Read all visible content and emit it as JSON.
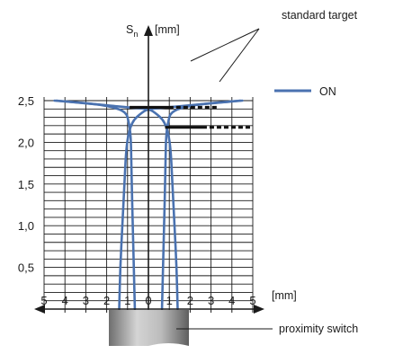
{
  "chart_data": {
    "type": "line",
    "title": "",
    "ylabel": "S",
    "ylabel_sub": "n",
    "yunit": "[mm]",
    "xunit": "[mm]",
    "xlim": [
      -5,
      5
    ],
    "ylim": [
      0,
      2.5
    ],
    "x_ticks": [
      "5",
      "4",
      "3",
      "2",
      "1",
      "0",
      "1",
      "2",
      "3",
      "4",
      "5"
    ],
    "y_ticks": [
      "0,5",
      "1,0",
      "1,5",
      "2,0",
      "2,5"
    ],
    "grid": true,
    "series": [
      {
        "name": "ON",
        "color": "#4a72b0",
        "left_branch": [
          [
            -4.5,
            2.5
          ],
          [
            -2.5,
            2.46
          ],
          [
            -1.5,
            2.41
          ],
          [
            -1.05,
            2.35
          ],
          [
            -0.95,
            2.25
          ],
          [
            -0.85,
            2.1
          ],
          [
            -0.82,
            1.8
          ],
          [
            -0.8,
            1.5
          ],
          [
            -0.75,
            1.0
          ],
          [
            -0.7,
            0.5
          ],
          [
            -0.65,
            0.0
          ]
        ],
        "right_branch": [
          [
            4.5,
            2.5
          ],
          [
            2.5,
            2.46
          ],
          [
            1.5,
            2.41
          ],
          [
            1.05,
            2.35
          ],
          [
            0.95,
            2.25
          ],
          [
            0.85,
            2.1
          ],
          [
            0.82,
            1.8
          ],
          [
            0.8,
            1.5
          ],
          [
            0.75,
            1.0
          ],
          [
            0.7,
            0.5
          ],
          [
            0.65,
            0.0
          ]
        ],
        "outer_left": [
          [
            -1.4,
            0.0
          ],
          [
            -1.35,
            0.5
          ],
          [
            -1.25,
            1.0
          ],
          [
            -1.15,
            1.5
          ],
          [
            -1.05,
            2.0
          ],
          [
            -0.8,
            2.25
          ],
          [
            -0.3,
            2.36
          ],
          [
            0.0,
            2.4
          ],
          [
            1.0,
            2.42
          ],
          [
            4.4,
            2.5
          ]
        ],
        "outer_right": [
          [
            1.4,
            0.0
          ],
          [
            1.35,
            0.5
          ],
          [
            1.25,
            1.0
          ],
          [
            1.15,
            1.5
          ],
          [
            1.05,
            2.0
          ],
          [
            0.8,
            2.25
          ],
          [
            0.3,
            2.36
          ],
          [
            0.0,
            2.4
          ],
          [
            -1.0,
            2.42
          ],
          [
            -4.4,
            2.5
          ]
        ]
      }
    ],
    "targets": [
      {
        "x": [
          -0.9,
          1.2
        ],
        "y": 2.42,
        "dashed_to": 2.4
      },
      {
        "x": [
          0.8,
          2.8
        ],
        "y": 2.18,
        "dashed_to": 4.0
      }
    ],
    "annotations": [
      "standard target",
      "ON",
      "proximity switch"
    ],
    "legend": "right"
  },
  "labels": {
    "standard_target": "standard target",
    "on": "ON",
    "proximity_switch": "proximity switch",
    "y_axis_s": "S",
    "y_axis_sub": "n",
    "y_unit": "[mm]",
    "x_unit": "[mm]"
  },
  "colors": {
    "curve": "#4a72b0",
    "grid": "#1a1a1a",
    "switch_body": "#9a9a9a"
  }
}
